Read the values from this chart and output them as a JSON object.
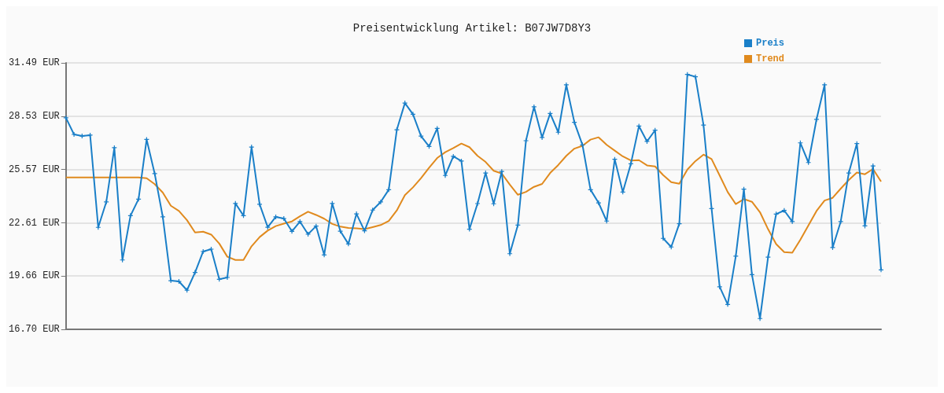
{
  "chart_data": {
    "type": "line",
    "title": "Preisentwicklung Artikel: B07JW7D8Y3",
    "categories": [
      null,
      null,
      null,
      null,
      null,
      null,
      null,
      null,
      null,
      null,
      null,
      null,
      null,
      null,
      null,
      null,
      null,
      null,
      null,
      null,
      null,
      null,
      null,
      null,
      null,
      null,
      null,
      null,
      null,
      null,
      null,
      null,
      null,
      null,
      null,
      null,
      null,
      null,
      null,
      null,
      null,
      null,
      null,
      null,
      null,
      null,
      null,
      null,
      null,
      null,
      null,
      null,
      null,
      null,
      null,
      null,
      null,
      null,
      null,
      null,
      null,
      null,
      null,
      null,
      null,
      null,
      null,
      null,
      null,
      null,
      null,
      null,
      null,
      null,
      null,
      null,
      null,
      null,
      null,
      null,
      null,
      null,
      null,
      null,
      null,
      null,
      null,
      null,
      null,
      null,
      null,
      null,
      null,
      null,
      null,
      null,
      null,
      null,
      null,
      null,
      null,
      null
    ],
    "series": [
      {
        "name": "Preis",
        "color": "#1a7fc8",
        "marker": "cross",
        "values": [
          28.44,
          27.52,
          27.43,
          27.48,
          22.36,
          23.77,
          26.78,
          20.55,
          23.01,
          23.93,
          27.24,
          25.34,
          22.94,
          19.4,
          19.36,
          18.87,
          19.86,
          21.02,
          21.15,
          19.48,
          19.58,
          23.69,
          23.01,
          26.82,
          23.64,
          22.37,
          22.94,
          22.85,
          22.14,
          22.68,
          21.98,
          22.43,
          20.83,
          23.69,
          22.15,
          21.44,
          23.11,
          22.17,
          23.32,
          23.77,
          24.45,
          27.78,
          29.26,
          28.64,
          27.43,
          26.85,
          27.85,
          25.24,
          26.3,
          26.04,
          22.26,
          23.68,
          25.38,
          23.67,
          25.46,
          20.9,
          22.49,
          27.17,
          29.05,
          27.35,
          28.68,
          27.64,
          30.27,
          28.19,
          26.94,
          24.45,
          23.72,
          22.71,
          26.14,
          24.32,
          25.89,
          27.98,
          27.13,
          27.75,
          21.75,
          21.27,
          22.56,
          30.85,
          30.72,
          28.04,
          23.4,
          19.06,
          18.08,
          20.76,
          24.48,
          19.74,
          17.3,
          20.71,
          23.1,
          23.3,
          22.68,
          27.05,
          25.96,
          28.35,
          30.27,
          21.24,
          22.68,
          25.38,
          27.01,
          22.44,
          25.77,
          20.0
        ]
      },
      {
        "name": "Trend",
        "color": "#e08a1e",
        "marker": "none",
        "values": [
          25.13,
          25.13,
          25.13,
          25.13,
          25.13,
          25.13,
          25.13,
          25.13,
          25.13,
          25.13,
          25.09,
          24.76,
          24.29,
          23.56,
          23.27,
          22.76,
          22.08,
          22.12,
          21.96,
          21.46,
          20.73,
          20.55,
          20.55,
          21.31,
          21.82,
          22.18,
          22.43,
          22.57,
          22.69,
          22.98,
          23.23,
          23.05,
          22.84,
          22.55,
          22.4,
          22.33,
          22.31,
          22.26,
          22.37,
          22.49,
          22.72,
          23.3,
          24.15,
          24.58,
          25.09,
          25.67,
          26.21,
          26.53,
          26.76,
          27.01,
          26.81,
          26.33,
          25.99,
          25.5,
          25.35,
          24.73,
          24.17,
          24.33,
          24.61,
          24.77,
          25.38,
          25.82,
          26.33,
          26.73,
          26.89,
          27.23,
          27.36,
          26.94,
          26.62,
          26.3,
          26.07,
          26.09,
          25.8,
          25.74,
          25.26,
          24.87,
          24.78,
          25.57,
          26.04,
          26.4,
          26.15,
          25.24,
          24.32,
          23.65,
          23.93,
          23.78,
          23.2,
          22.26,
          21.43,
          20.99,
          20.95,
          21.67,
          22.47,
          23.27,
          23.85,
          24.0,
          24.51,
          24.99,
          25.4,
          25.31,
          25.6,
          24.9
        ]
      }
    ],
    "ylim": [
      16.7,
      31.49
    ],
    "yticks": [
      {
        "value": 16.7,
        "label": "16.70 EUR"
      },
      {
        "value": 19.66,
        "label": "19.66 EUR"
      },
      {
        "value": 22.61,
        "label": "22.61 EUR"
      },
      {
        "value": 25.57,
        "label": "25.57 EUR"
      },
      {
        "value": 28.53,
        "label": "28.53 EUR"
      },
      {
        "value": 31.49,
        "label": "31.49 EUR"
      }
    ],
    "grid": "y",
    "legend": "top right",
    "line_style": "solid"
  }
}
